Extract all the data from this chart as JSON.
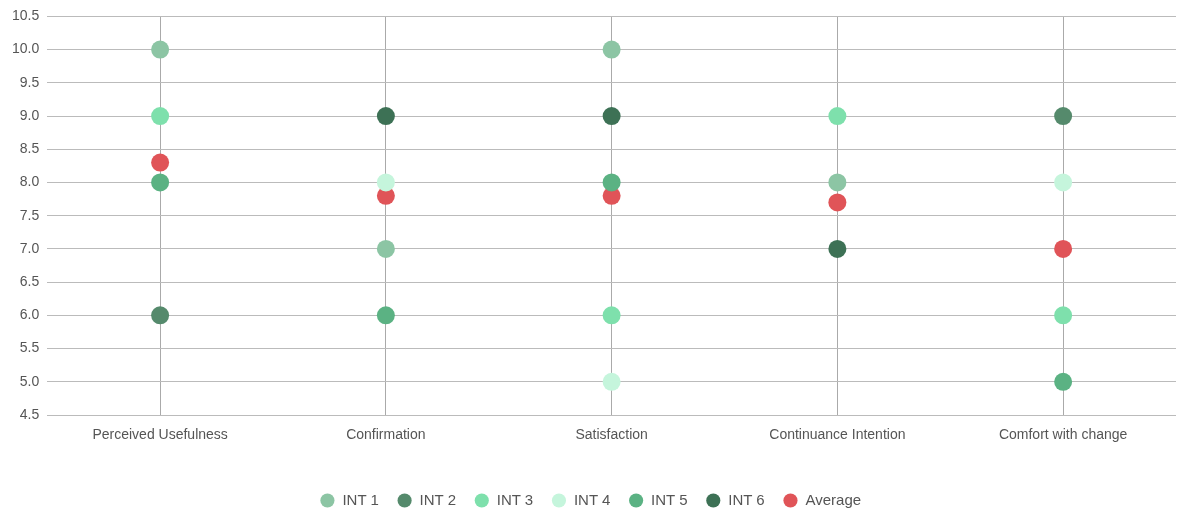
{
  "chart_data": {
    "type": "scatter",
    "categories": [
      "Perceived Usefulness",
      "Confirmation",
      "Satisfaction",
      "Continuance Intention",
      "Comfort with change"
    ],
    "series": [
      {
        "name": "INT 1",
        "color": "#8cc5a4",
        "values": [
          10,
          7,
          10,
          8,
          null
        ]
      },
      {
        "name": "INT 2",
        "color": "#558a6c",
        "values": [
          6,
          null,
          null,
          null,
          9
        ]
      },
      {
        "name": "INT 3",
        "color": "#7ee0ac",
        "values": [
          9,
          null,
          6,
          9,
          6
        ]
      },
      {
        "name": "INT 4",
        "color": "#c5f5dc",
        "values": [
          null,
          8,
          5,
          null,
          8
        ]
      },
      {
        "name": "INT 5",
        "color": "#5bb283",
        "values": [
          8,
          6,
          8,
          null,
          5
        ]
      },
      {
        "name": "INT 6",
        "color": "#3d7155",
        "values": [
          null,
          9,
          9,
          7,
          null
        ]
      },
      {
        "name": "Average",
        "color": "#e05458",
        "values": [
          8.3,
          7.8,
          7.8,
          7.7,
          7.0
        ]
      }
    ],
    "ylim": [
      4.5,
      10.5
    ],
    "yticks": [
      {
        "value": 4.5,
        "label": "4.5"
      },
      {
        "value": 5,
        "label": "5.0"
      },
      {
        "value": 5.5,
        "label": "5.5"
      },
      {
        "value": 6,
        "label": "6.0"
      },
      {
        "value": 6.5,
        "label": "6.5"
      },
      {
        "value": 7,
        "label": "7.0"
      },
      {
        "value": 7.5,
        "label": "7.5"
      },
      {
        "value": 8,
        "label": "8.0"
      },
      {
        "value": 8.5,
        "label": "8.5"
      },
      {
        "value": 9,
        "label": "9.0"
      },
      {
        "value": 9.5,
        "label": "9.5"
      },
      {
        "value": 10,
        "label": "10.0"
      },
      {
        "value": 10.5,
        "label": "10.5"
      }
    ],
    "grid": true,
    "legend": "bottom",
    "marker": "circle"
  }
}
